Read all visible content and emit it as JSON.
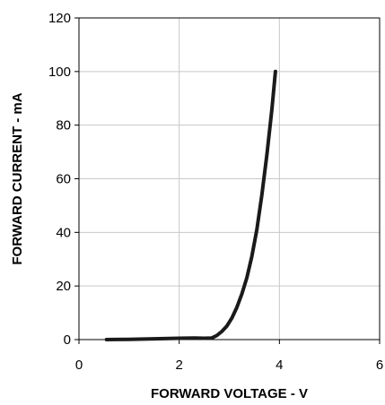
{
  "chart_data": {
    "type": "line",
    "title": "",
    "xlabel": "FORWARD VOLTAGE - V",
    "ylabel": "FORWARD CURRENT - mA",
    "xlim": [
      0,
      6
    ],
    "ylim": [
      0,
      120
    ],
    "x_ticks": [
      0,
      2,
      4,
      6
    ],
    "y_ticks": [
      0,
      20,
      40,
      60,
      80,
      100,
      120
    ],
    "x_tick_labels": [
      "0",
      "2",
      "4",
      "6"
    ],
    "y_tick_labels": [
      "0",
      "20",
      "40",
      "60",
      "80",
      "100",
      "120"
    ],
    "grid": true,
    "legend": "none",
    "series": [
      {
        "color": "#1a1a1a",
        "x": [
          0.55,
          1.0,
          1.5,
          2.0,
          2.3,
          2.5,
          2.65,
          2.75,
          2.85,
          2.95,
          3.05,
          3.15,
          3.25,
          3.35,
          3.45,
          3.55,
          3.65,
          3.75,
          3.85,
          3.92
        ],
        "y": [
          0,
          0.1,
          0.3,
          0.5,
          0.6,
          0.5,
          0.6,
          1.5,
          3.0,
          5.0,
          8.0,
          12.0,
          17.0,
          23.0,
          31.0,
          41.0,
          54.0,
          69.0,
          86.0,
          100.0
        ]
      }
    ]
  }
}
